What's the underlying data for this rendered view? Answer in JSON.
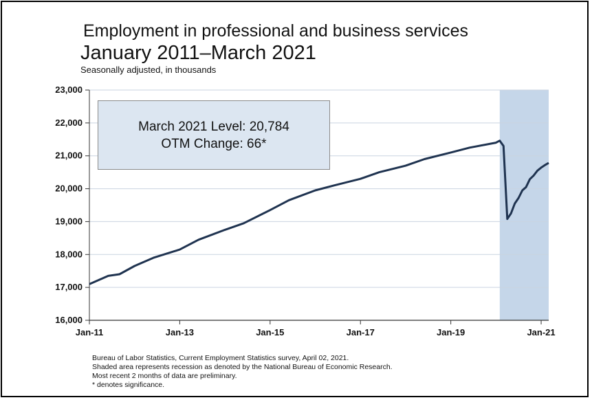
{
  "title_line1": "Employment in professional and business services",
  "title_line2": "January 2011–March 2021",
  "subtitle": "Seasonally adjusted, in thousands",
  "callout": {
    "line1": "March 2021 Level: 20,784",
    "line2": "OTM Change: 66*"
  },
  "notes": [
    "Bureau of Labor Statistics, Current Employment Statistics survey, April 02, 2021.",
    "Shaded area represents recession as denoted by the National Bureau of Economic Research.",
    "Most recent 2 months of data are preliminary.",
    "* denotes significance."
  ],
  "colors": {
    "line": "#1f3350",
    "recession": "#c5d6e9",
    "callout_bg": "#dce6f1",
    "grid": "#c9d3e0"
  },
  "chart_data": {
    "type": "line",
    "ylim": [
      16000,
      23000
    ],
    "y_ticks": [
      "16,000",
      "17,000",
      "18,000",
      "19,000",
      "20,000",
      "21,000",
      "22,000",
      "23,000"
    ],
    "x_ticks": [
      "Jan-11",
      "Jan-13",
      "Jan-15",
      "Jan-17",
      "Jan-19",
      "Jan-21"
    ],
    "x_range": [
      "2011-01",
      "2021-03"
    ],
    "recession": {
      "start": "2020-02",
      "end": "2021-03"
    },
    "grid": true,
    "series": [
      {
        "anchors": [
          [
            "2011-01",
            17100
          ],
          [
            "2011-06",
            17350
          ],
          [
            "2011-09",
            17400
          ],
          [
            "2012-01",
            17650
          ],
          [
            "2012-06",
            17900
          ],
          [
            "2013-01",
            18150
          ],
          [
            "2013-06",
            18450
          ],
          [
            "2014-01",
            18750
          ],
          [
            "2014-06",
            18950
          ],
          [
            "2015-01",
            19350
          ],
          [
            "2015-06",
            19650
          ],
          [
            "2016-01",
            19950
          ],
          [
            "2016-06",
            20100
          ],
          [
            "2017-01",
            20300
          ],
          [
            "2017-06",
            20500
          ],
          [
            "2018-01",
            20700
          ],
          [
            "2018-06",
            20900
          ],
          [
            "2019-01",
            21100
          ],
          [
            "2019-06",
            21250
          ],
          [
            "2020-01",
            21400
          ],
          [
            "2020-02",
            21460
          ],
          [
            "2020-03",
            21300
          ],
          [
            "2020-04",
            19080
          ],
          [
            "2020-05",
            19250
          ],
          [
            "2020-06",
            19550
          ],
          [
            "2020-07",
            19720
          ],
          [
            "2020-08",
            19950
          ],
          [
            "2020-09",
            20050
          ],
          [
            "2020-10",
            20290
          ],
          [
            "2020-11",
            20400
          ],
          [
            "2020-12",
            20550
          ],
          [
            "2021-01",
            20640
          ],
          [
            "2021-02",
            20718
          ],
          [
            "2021-03",
            20784
          ]
        ]
      }
    ]
  }
}
